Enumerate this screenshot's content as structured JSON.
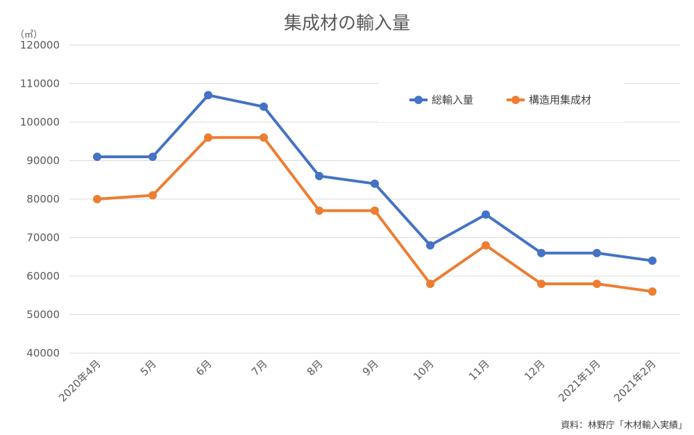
{
  "chart_data": {
    "type": "line",
    "title": "集成材の輸入量",
    "unit_label": "（㎥）",
    "categories": [
      "2020年4月",
      "5月",
      "6月",
      "7月",
      "8月",
      "9月",
      "10月",
      "11月",
      "12月",
      "2021年1月",
      "2021年2月"
    ],
    "ylim": [
      40000,
      120000
    ],
    "yticks": [
      40000,
      50000,
      60000,
      70000,
      80000,
      90000,
      100000,
      110000,
      120000
    ],
    "grid": true,
    "legend_position": "top-right",
    "series": [
      {
        "name": "総輸入量",
        "color": "#4472C4",
        "values": [
          91000,
          91000,
          107000,
          104000,
          86000,
          84000,
          68000,
          76000,
          66000,
          66000,
          64000
        ]
      },
      {
        "name": "構造用集成材",
        "color": "#ED7D31",
        "values": [
          80000,
          81000,
          96000,
          96000,
          77000,
          77000,
          58000,
          68000,
          58000,
          58000,
          56000
        ]
      }
    ],
    "source": "資料：林野庁「木材輸入実績」"
  }
}
